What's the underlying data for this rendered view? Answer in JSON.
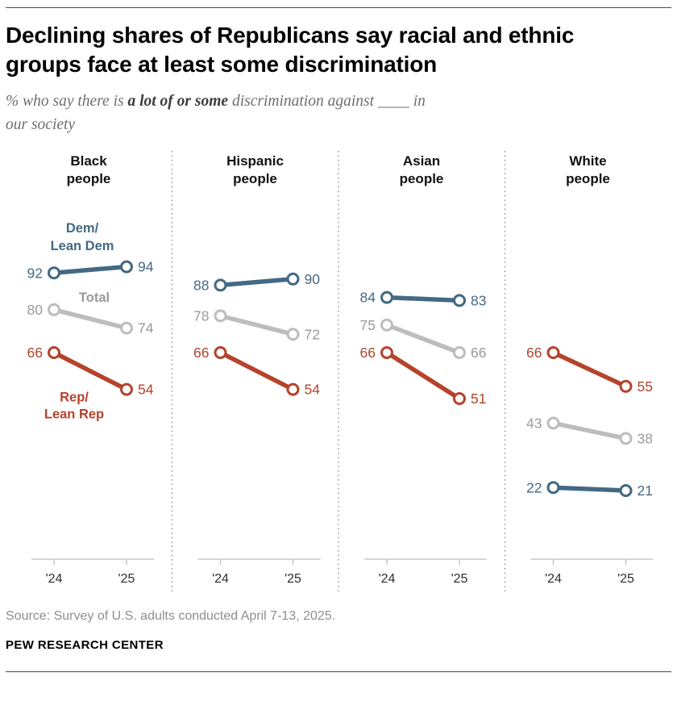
{
  "header": {
    "title": "Declining shares of Republicans say racial and ethnic\ngroups face at least some discrimination",
    "subtitle_prefix": "% who say there is ",
    "subtitle_bold": "a lot of or some",
    "subtitle_suffix": " discrimination against ____ in\nour society"
  },
  "footer": {
    "source": "Source: Survey of U.S. adults conducted April 7-13, 2025.",
    "brand": "PEW RESEARCH CENTER"
  },
  "chart_data": {
    "type": "line",
    "subtype": "slope",
    "x": [
      "'24",
      "'25"
    ],
    "panels": [
      {
        "title": [
          "Black",
          "people"
        ],
        "series": [
          {
            "name": "Dem/Lean Dem",
            "key": "dem",
            "values": [
              92,
              94
            ]
          },
          {
            "name": "Total",
            "key": "total",
            "values": [
              80,
              74
            ]
          },
          {
            "name": "Rep/Lean Rep",
            "key": "rep",
            "values": [
              66,
              54
            ]
          }
        ]
      },
      {
        "title": [
          "Hispanic",
          "people"
        ],
        "series": [
          {
            "name": "Dem/Lean Dem",
            "key": "dem",
            "values": [
              88,
              90
            ]
          },
          {
            "name": "Total",
            "key": "total",
            "values": [
              78,
              72
            ]
          },
          {
            "name": "Rep/Lean Rep",
            "key": "rep",
            "values": [
              66,
              54
            ]
          }
        ]
      },
      {
        "title": [
          "Asian",
          "people"
        ],
        "series": [
          {
            "name": "Dem/Lean Dem",
            "key": "dem",
            "values": [
              84,
              83
            ]
          },
          {
            "name": "Total",
            "key": "total",
            "values": [
              75,
              66
            ]
          },
          {
            "name": "Rep/Lean Rep",
            "key": "rep",
            "values": [
              66,
              51
            ]
          }
        ]
      },
      {
        "title": [
          "White",
          "people"
        ],
        "series": [
          {
            "name": "Rep/Lean Rep",
            "key": "rep",
            "values": [
              66,
              55
            ]
          },
          {
            "name": "Total",
            "key": "total",
            "values": [
              43,
              38
            ]
          },
          {
            "name": "Dem/Lean Dem",
            "key": "dem",
            "values": [
              22,
              21
            ]
          }
        ]
      }
    ],
    "legend": {
      "dem": [
        "Dem/",
        "Lean Dem"
      ],
      "total": "Total",
      "rep": [
        "Rep/",
        "Lean Rep"
      ]
    },
    "colors": {
      "dem": "#436983",
      "total": "#BDBDBD",
      "rep": "#B5432C"
    },
    "label_colors": {
      "dem": "#436983",
      "total": "#9A9A9A",
      "rep": "#B5432C"
    },
    "ylim": [
      0,
      100
    ],
    "grid": false
  }
}
